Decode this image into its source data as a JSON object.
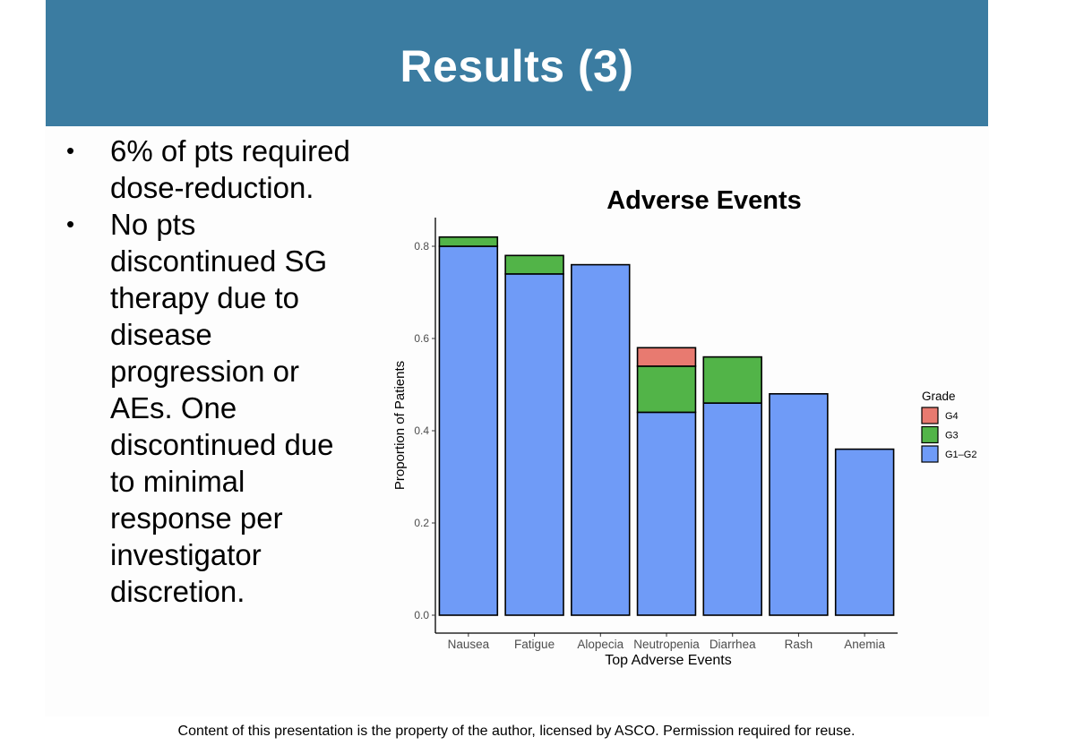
{
  "slide": {
    "title": "Results (3)",
    "bullets": [
      "6% of pts required dose-reduction.",
      "No pts discontinued SG therapy due to disease progression or AEs. One discontinued due to minimal response per investigator discretion."
    ],
    "footer": "Content of this presentation is the property of the author, licensed by ASCO. Permission required for reuse."
  },
  "chart_data": {
    "type": "bar",
    "stacked": true,
    "title": "Adverse Events",
    "xlabel": "Top Adverse Events",
    "ylabel": "Proportion of Patients",
    "categories": [
      "Nausea",
      "Fatigue",
      "Alopecia",
      "Neutropenia",
      "Diarrhea",
      "Rash",
      "Anemia"
    ],
    "series": [
      {
        "name": "G1–G2",
        "color": "#6f9bf7",
        "values": [
          0.8,
          0.74,
          0.76,
          0.44,
          0.46,
          0.48,
          0.36
        ]
      },
      {
        "name": "G3",
        "color": "#52b448",
        "values": [
          0.02,
          0.04,
          0,
          0.1,
          0.1,
          0,
          0
        ]
      },
      {
        "name": "G4",
        "color": "#e87a70",
        "values": [
          0,
          0,
          0,
          0.04,
          0,
          0,
          0
        ]
      }
    ],
    "legend": {
      "title": "Grade",
      "entries": [
        "G4",
        "G3",
        "G1–G2"
      ],
      "placement": "right"
    },
    "ylim": [
      0,
      0.86
    ],
    "yticks": [
      0.0,
      0.2,
      0.4,
      0.6,
      0.8
    ],
    "ytick_labels": [
      "0.0",
      "0.2",
      "0.4",
      "0.6",
      "0.8"
    ],
    "grid": false
  }
}
